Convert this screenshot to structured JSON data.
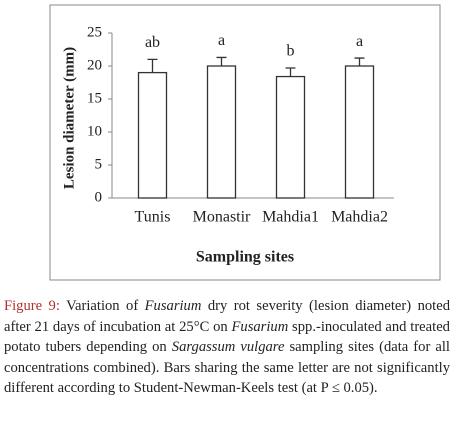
{
  "chart_data": {
    "type": "bar",
    "categories": [
      "Tunis",
      "Monastir",
      "Mahdia1",
      "Mahdia2"
    ],
    "values": [
      19,
      20,
      18.4,
      20
    ],
    "errors": [
      2,
      1.3,
      1.3,
      1.2
    ],
    "letters": [
      "ab",
      "a",
      "b",
      "a"
    ],
    "color": "#ffffff",
    "ylabel": "Lesion diameter (mm)",
    "xlabel": "Sampling sites",
    "ylim": [
      0,
      25
    ],
    "yticks": [
      0,
      5,
      10,
      15,
      20,
      25
    ],
    "grid": false
  },
  "caption": {
    "label": "Figure 9:",
    "parts": [
      {
        "text": "Variation of",
        "italic": false
      },
      {
        "text": "Fusarium",
        "italic": true
      },
      {
        "text": "dry rot severity (lesion diameter) noted after 21 days of incubation at 25°C on",
        "italic": false
      },
      {
        "text": "Fusarium",
        "italic": true
      },
      {
        "text": "spp.-inoculated and treated potato tubers depending on",
        "italic": false
      },
      {
        "text": "Sargassum vulgare",
        "italic": true
      },
      {
        "text": "sampling sites (data for all concentrations combined). Bars sharing the same letter are not significantly different according to Student-Newman-Keels test (at P ≤ 0.05).",
        "italic": false
      }
    ]
  }
}
